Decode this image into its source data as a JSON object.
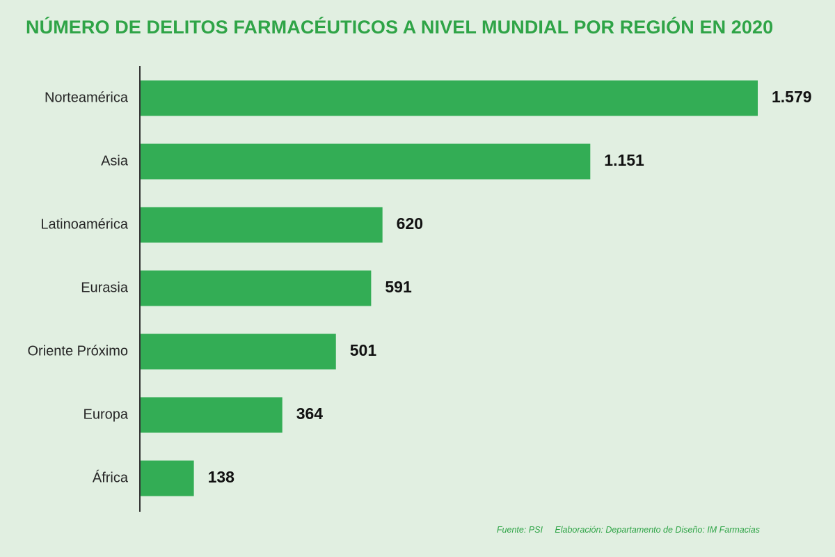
{
  "chart_data": {
    "type": "bar",
    "orientation": "horizontal",
    "title": "NÚMERO DE DELITOS FARMACÉUTICOS A NIVEL MUNDIAL POR REGIÓN EN 2020",
    "categories": [
      "Norteamérica",
      "Asia",
      "Latinoamérica",
      "Eurasia",
      "Oriente Próximo",
      "Europa",
      "África"
    ],
    "values": [
      1579,
      1151,
      620,
      591,
      501,
      364,
      138
    ],
    "value_labels": [
      "1.579",
      "1.151",
      "620",
      "591",
      "501",
      "364",
      "138"
    ],
    "xlim": [
      0,
      1579
    ],
    "grid": false,
    "legend": "none",
    "bar_color": "#33ad55"
  },
  "footer": {
    "source": "Fuente: PSI",
    "credit": "Elaboración: Departamento de Diseño: IM Farmacias"
  },
  "colors": {
    "background": "#e1efe1",
    "title": "#2fa447",
    "bar": "#33ad55",
    "axis": "#333333"
  }
}
